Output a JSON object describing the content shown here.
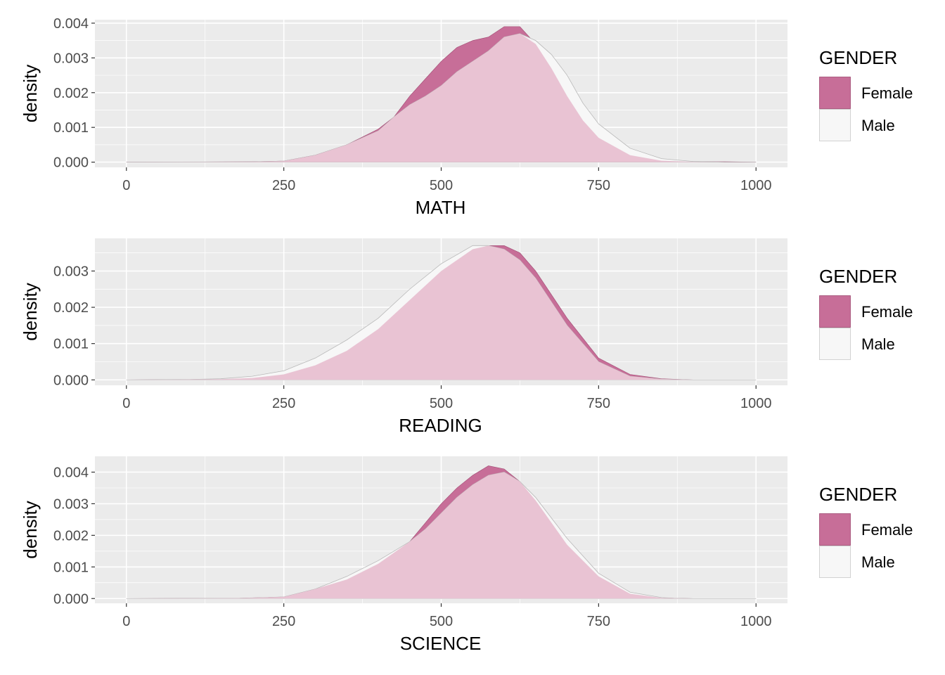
{
  "colors": {
    "panel_bg": "#ebebeb",
    "grid_major": "#ffffff",
    "female_fill": "#c76e98",
    "male_fill": "#f7f7f7",
    "overlap_fill": "#e9c3d3",
    "outline": "#b8b8b8"
  },
  "legend": {
    "title": "GENDER",
    "labels": [
      "Female",
      "Male"
    ]
  },
  "chart_data": [
    {
      "type": "area",
      "title": "",
      "xlabel": "MATH",
      "ylabel": "density",
      "xlim": [
        -50,
        1050
      ],
      "ylim": [
        -0.00015,
        0.0041
      ],
      "xticks": [
        0,
        250,
        500,
        750,
        1000
      ],
      "xtick_labels": [
        "0",
        "250",
        "500",
        "750",
        "1000"
      ],
      "yticks": [
        0,
        0.001,
        0.002,
        0.003,
        0.004
      ],
      "ytick_labels": [
        "0.000",
        "0.001",
        "0.002",
        "0.003",
        "0.004"
      ],
      "grid": true,
      "legend_position": "right",
      "series": [
        {
          "name": "Female",
          "x": [
            0,
            200,
            250,
            300,
            350,
            400,
            425,
            450,
            475,
            500,
            525,
            550,
            575,
            600,
            625,
            650,
            675,
            700,
            725,
            750,
            800,
            850,
            900,
            950,
            1000
          ],
          "y": [
            0,
            1e-05,
            3e-05,
            0.0002,
            0.0005,
            0.00095,
            0.0013,
            0.0019,
            0.0024,
            0.0029,
            0.0033,
            0.0035,
            0.0036,
            0.0039,
            0.0039,
            0.0034,
            0.0027,
            0.0019,
            0.0012,
            0.0007,
            0.0002,
            4e-05,
            1e-05,
            1e-05,
            0
          ]
        },
        {
          "name": "Male",
          "x": [
            0,
            200,
            250,
            300,
            350,
            400,
            425,
            450,
            475,
            500,
            525,
            550,
            575,
            600,
            625,
            650,
            675,
            700,
            725,
            750,
            800,
            850,
            900,
            950,
            1000
          ],
          "y": [
            0,
            1e-05,
            3e-05,
            0.0002,
            0.0005,
            0.0009,
            0.0013,
            0.00165,
            0.0019,
            0.0022,
            0.0026,
            0.0029,
            0.0032,
            0.0036,
            0.0037,
            0.0035,
            0.0031,
            0.0025,
            0.0017,
            0.0011,
            0.0004,
            0.0001,
            2e-05,
            0,
            0
          ]
        }
      ]
    },
    {
      "type": "area",
      "title": "",
      "xlabel": "READING",
      "ylabel": "density",
      "xlim": [
        -50,
        1050
      ],
      "ylim": [
        -0.00015,
        0.0039
      ],
      "xticks": [
        0,
        250,
        500,
        750,
        1000
      ],
      "xtick_labels": [
        "0",
        "250",
        "500",
        "750",
        "1000"
      ],
      "yticks": [
        0,
        0.001,
        0.002,
        0.003
      ],
      "ytick_labels": [
        "0.000",
        "0.001",
        "0.002",
        "0.003"
      ],
      "grid": true,
      "legend_position": "right",
      "series": [
        {
          "name": "Female",
          "x": [
            0,
            100,
            150,
            200,
            250,
            300,
            350,
            400,
            450,
            500,
            550,
            575,
            600,
            625,
            650,
            700,
            750,
            800,
            850,
            900,
            1000
          ],
          "y": [
            0,
            1e-05,
            2e-05,
            5e-05,
            0.00015,
            0.0004,
            0.0008,
            0.0014,
            0.0022,
            0.003,
            0.0036,
            0.0037,
            0.0037,
            0.0035,
            0.003,
            0.0017,
            0.0006,
            0.00015,
            3e-05,
            0,
            0
          ]
        },
        {
          "name": "Male",
          "x": [
            0,
            100,
            150,
            200,
            250,
            300,
            350,
            400,
            450,
            500,
            550,
            575,
            600,
            625,
            650,
            700,
            750,
            800,
            850,
            900,
            1000
          ],
          "y": [
            0,
            1e-05,
            3e-05,
            0.0001,
            0.00025,
            0.0006,
            0.0011,
            0.0017,
            0.0025,
            0.0032,
            0.0037,
            0.0037,
            0.0036,
            0.0033,
            0.0028,
            0.0015,
            0.0005,
            0.0001,
            2e-05,
            0,
            0
          ]
        }
      ]
    },
    {
      "type": "area",
      "title": "",
      "xlabel": "SCIENCE",
      "ylabel": "density",
      "xlim": [
        -50,
        1050
      ],
      "ylim": [
        -0.00015,
        0.0045
      ],
      "xticks": [
        0,
        250,
        500,
        750,
        1000
      ],
      "xtick_labels": [
        "0",
        "250",
        "500",
        "750",
        "1000"
      ],
      "yticks": [
        0,
        0.001,
        0.002,
        0.003,
        0.004
      ],
      "ytick_labels": [
        "0.000",
        "0.001",
        "0.002",
        "0.003",
        "0.004"
      ],
      "grid": true,
      "legend_position": "right",
      "series": [
        {
          "name": "Female",
          "x": [
            0,
            180,
            250,
            300,
            350,
            400,
            450,
            475,
            500,
            525,
            550,
            575,
            600,
            625,
            650,
            700,
            750,
            800,
            850,
            870,
            900,
            1000
          ],
          "y": [
            0,
            1e-05,
            5e-05,
            0.0003,
            0.0006,
            0.0011,
            0.0018,
            0.0024,
            0.003,
            0.0035,
            0.0039,
            0.0042,
            0.0041,
            0.0037,
            0.0031,
            0.0017,
            0.0007,
            0.00015,
            2e-05,
            1e-05,
            0,
            0
          ]
        },
        {
          "name": "Male",
          "x": [
            0,
            180,
            250,
            300,
            350,
            400,
            450,
            475,
            500,
            525,
            550,
            575,
            600,
            625,
            650,
            700,
            750,
            800,
            850,
            870,
            900,
            1000
          ],
          "y": [
            0,
            1e-05,
            5e-05,
            0.0003,
            0.0007,
            0.0012,
            0.0018,
            0.0022,
            0.0027,
            0.0032,
            0.0036,
            0.0039,
            0.004,
            0.0037,
            0.0032,
            0.0019,
            0.0008,
            0.0002,
            3e-05,
            1e-05,
            0,
            0
          ]
        }
      ]
    }
  ]
}
